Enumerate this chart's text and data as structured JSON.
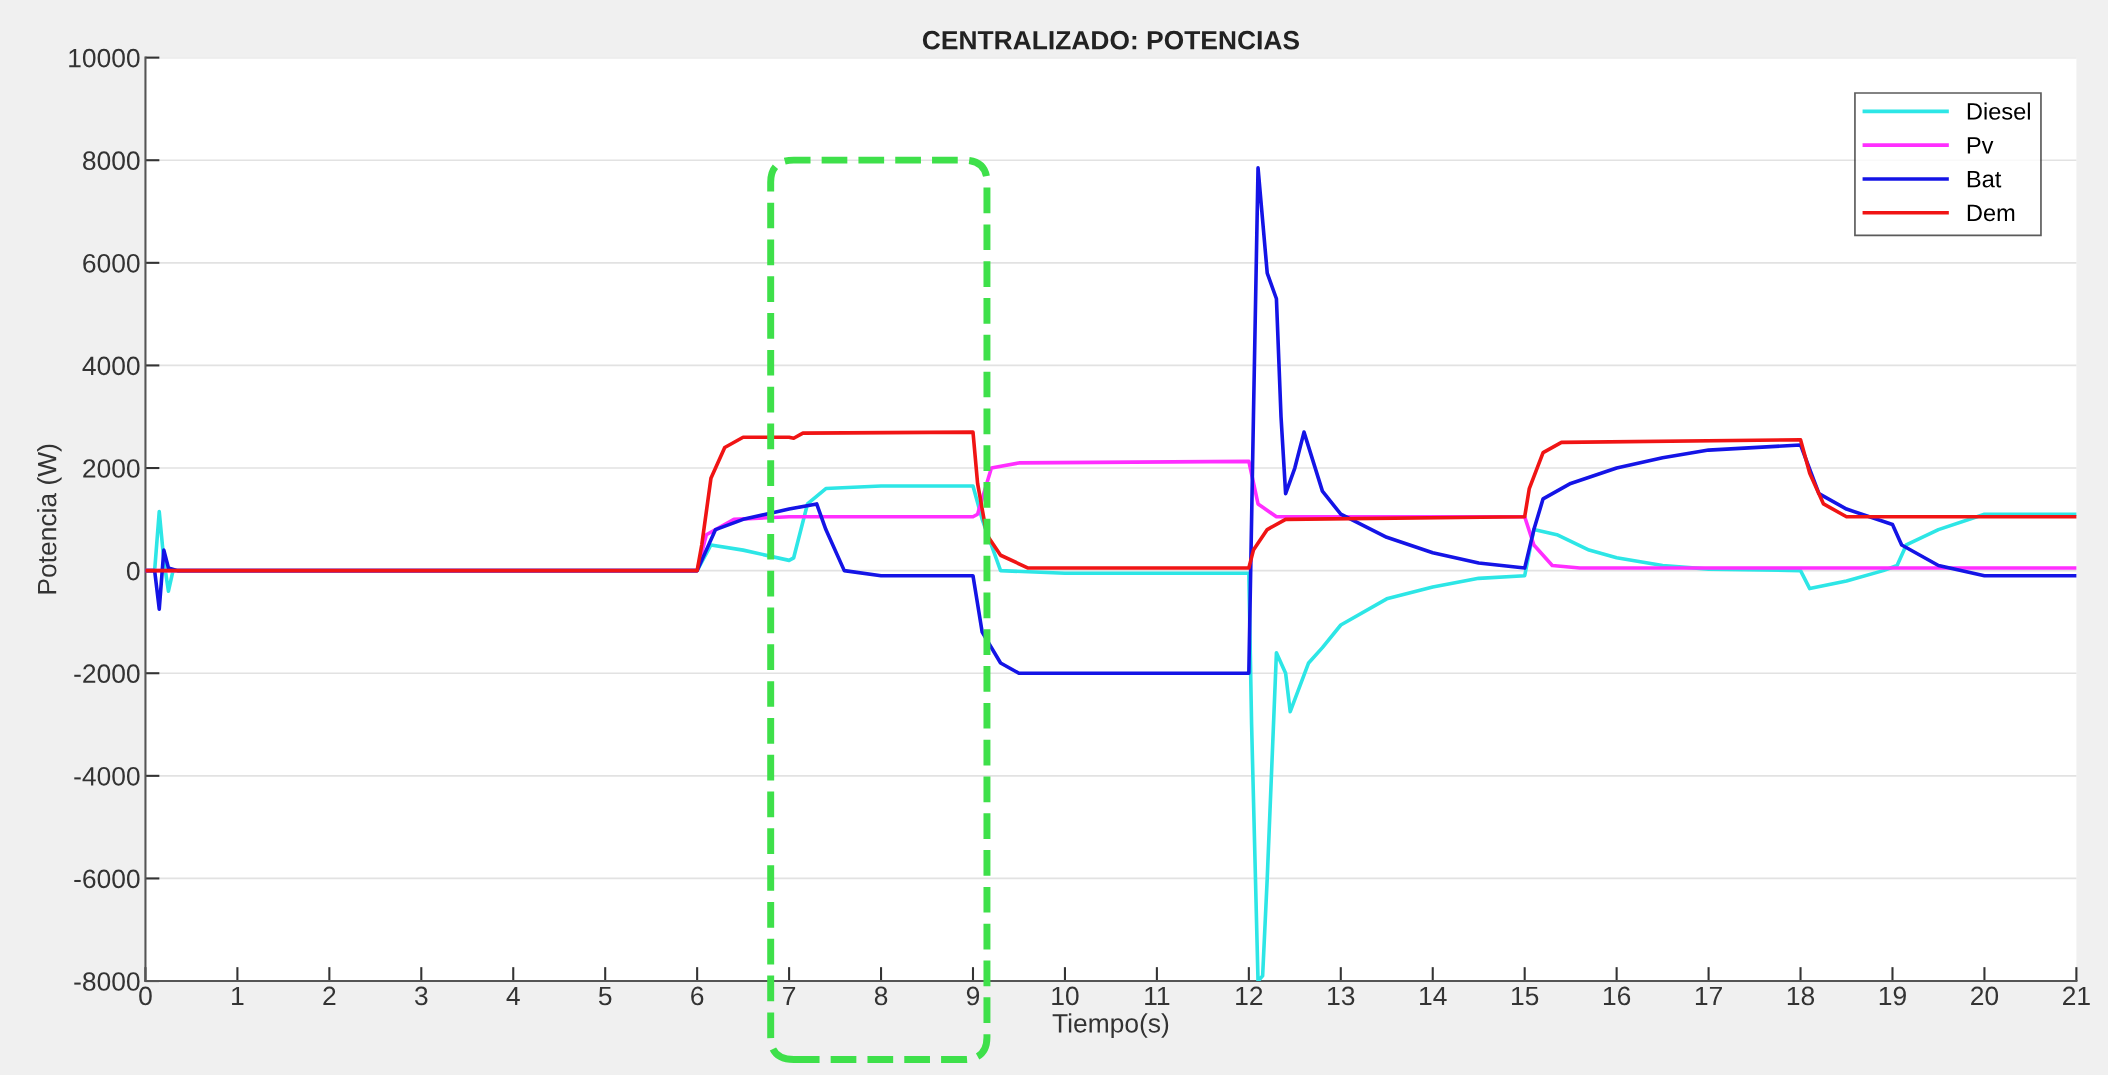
{
  "chart_data": {
    "type": "line",
    "title": "CENTRALIZADO: POTENCIAS",
    "xlabel": "Tiempo(s)",
    "ylabel": "Potencia (W)",
    "xlim": [
      0,
      21
    ],
    "xticks": [
      0,
      1,
      2,
      3,
      4,
      5,
      6,
      7,
      8,
      9,
      10,
      11,
      12,
      13,
      14,
      15,
      16,
      17,
      18,
      19,
      20,
      21
    ],
    "ylim": [
      -8000,
      10000
    ],
    "yticks": [
      -8000,
      -6000,
      -4000,
      -2000,
      0,
      2000,
      4000,
      6000,
      8000,
      10000
    ],
    "grid": "y",
    "legend": "top right",
    "line_style": "solid",
    "marker": "none",
    "series": [
      {
        "name": "Diesel",
        "color": "#2de6e6",
        "x": [
          0,
          0.1,
          0.15,
          0.2,
          0.25,
          0.3,
          6.0,
          6.15,
          6.5,
          7.0,
          7.05,
          7.2,
          7.4,
          8,
          9,
          9.1,
          9.3,
          10,
          12,
          12.03,
          12.1,
          12.15,
          12.2,
          12.3,
          12.4,
          12.45,
          12.65,
          12.8,
          13,
          13.5,
          14,
          14.5,
          15,
          15.1,
          15.35,
          15.7,
          16,
          16.5,
          17,
          18,
          18.1,
          18.5,
          18.9,
          19.05,
          19.15,
          19.5,
          20,
          21
        ],
        "values": [
          0,
          0,
          1150,
          200,
          -400,
          0,
          0,
          500,
          400,
          200,
          250,
          1300,
          1600,
          1650,
          1650,
          1000,
          0,
          -50,
          -50,
          -3000,
          -8000,
          -7900,
          -6000,
          -1600,
          -2000,
          -2750,
          -1800,
          -1500,
          -1060,
          -550,
          -320,
          -150,
          -100,
          800,
          700,
          400,
          250,
          100,
          30,
          0,
          -350,
          -200,
          0,
          100,
          500,
          800,
          1100,
          1100
        ]
      },
      {
        "name": "Pv",
        "color": "#ff2eff",
        "x": [
          0,
          6,
          6.1,
          6.4,
          7,
          9,
          9.05,
          9.2,
          9.5,
          12,
          12.1,
          12.3,
          13,
          15,
          15.1,
          15.3,
          15.6,
          21
        ],
        "values": [
          0,
          0,
          700,
          1000,
          1050,
          1050,
          1100,
          2000,
          2100,
          2130,
          1300,
          1050,
          1050,
          1050,
          500,
          100,
          50,
          50
        ]
      },
      {
        "name": "Bat",
        "color": "#1414e6",
        "x": [
          0,
          0.1,
          0.15,
          0.2,
          0.25,
          0.35,
          6,
          6.2,
          6.5,
          7,
          7.3,
          7.4,
          7.6,
          8,
          9,
          9.1,
          9.3,
          9.5,
          12,
          12.05,
          12.1,
          12.2,
          12.3,
          12.35,
          12.4,
          12.5,
          12.6,
          12.8,
          13,
          13.5,
          14,
          14.5,
          15,
          15.1,
          15.2,
          15.5,
          16,
          16.5,
          17,
          18,
          18.2,
          18.5,
          19,
          19.1,
          19.5,
          20,
          21
        ],
        "values": [
          0,
          0,
          -750,
          400,
          50,
          0,
          0,
          800,
          1000,
          1200,
          1300,
          800,
          0,
          -100,
          -100,
          -1200,
          -1800,
          -2000,
          -2000,
          3000,
          7850,
          5800,
          5300,
          3000,
          1500,
          2000,
          2700,
          1550,
          1100,
          650,
          350,
          150,
          50,
          800,
          1400,
          1700,
          2000,
          2200,
          2350,
          2450,
          1500,
          1200,
          900,
          500,
          100,
          -100,
          -100
        ]
      },
      {
        "name": "Dem",
        "color": "#f01414",
        "x": [
          0,
          6,
          6.05,
          6.15,
          6.3,
          6.5,
          7,
          7.05,
          7.15,
          9,
          9.05,
          9.15,
          9.3,
          9.6,
          12,
          12.05,
          12.2,
          12.4,
          15,
          15.05,
          15.2,
          15.4,
          18,
          18.1,
          18.25,
          18.5,
          21
        ],
        "values": [
          0,
          0,
          500,
          1800,
          2400,
          2600,
          2600,
          2580,
          2680,
          2700,
          1700,
          700,
          300,
          50,
          50,
          400,
          800,
          1000,
          1050,
          1600,
          2300,
          2500,
          2550,
          1900,
          1300,
          1050,
          1050
        ]
      }
    ]
  }
}
